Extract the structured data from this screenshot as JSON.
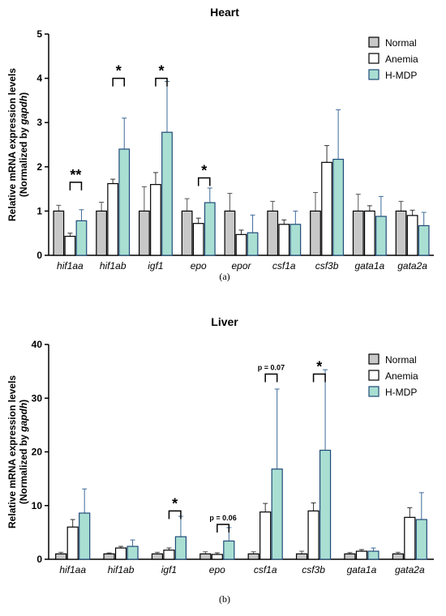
{
  "chart_data": [
    {
      "type": "bar",
      "panel": "(a)",
      "title": "Heart",
      "ylabel_line1": "Relative mRNA expression levels",
      "ylabel_line2_prefix": "(Normalized by ",
      "ylabel_line2_gene": "gapdh",
      "ylabel_line2_suffix": ")",
      "ylim": [
        0,
        5
      ],
      "yticks": [
        "0",
        "1",
        "2",
        "3",
        "4",
        "5"
      ],
      "legend_position": "top-right",
      "categories": [
        "hif1aa",
        "hif1ab",
        "igf1",
        "epo",
        "epor",
        "csf1a",
        "csf3b",
        "gata1a",
        "gata2a"
      ],
      "series": [
        {
          "name": "Normal",
          "color": "#c8c8c8",
          "edge": "#000000",
          "err_color": "#555555",
          "values": [
            1.0,
            1.0,
            1.0,
            1.0,
            1.0,
            1.0,
            1.0,
            1.0,
            1.0
          ],
          "errors": [
            0.13,
            0.2,
            0.55,
            0.28,
            0.4,
            0.22,
            0.42,
            0.38,
            0.22
          ]
        },
        {
          "name": "Anemia",
          "color": "#ffffff",
          "edge": "#000000",
          "err_color": "#333333",
          "values": [
            0.43,
            1.62,
            1.6,
            0.72,
            0.47,
            0.7,
            2.1,
            1.0,
            0.9
          ],
          "errors": [
            0.07,
            0.1,
            0.27,
            0.12,
            0.1,
            0.1,
            0.38,
            0.12,
            0.12
          ]
        },
        {
          "name": "H-MDP",
          "color": "#a9dfd2",
          "edge": "#1f4a78",
          "err_color": "#3e6a9a",
          "values": [
            0.78,
            2.4,
            2.78,
            1.19,
            0.51,
            0.7,
            2.17,
            0.88,
            0.67
          ],
          "errors": [
            0.25,
            0.7,
            1.15,
            0.33,
            0.4,
            0.3,
            1.12,
            0.45,
            0.3
          ]
        }
      ],
      "significance": [
        {
          "category": "hif1aa",
          "label": "**",
          "top": 1.65
        },
        {
          "category": "hif1ab",
          "label": "*",
          "top": 4.0
        },
        {
          "category": "igf1",
          "label": "*",
          "top": 4.0
        },
        {
          "category": "epo",
          "label": "*",
          "top": 1.75
        }
      ]
    },
    {
      "type": "bar",
      "panel": "(b)",
      "title": "Liver",
      "ylabel_line1": "Relative mRNA expression levels",
      "ylabel_line2_prefix": "(Normalized by ",
      "ylabel_line2_gene": "gapdh",
      "ylabel_line2_suffix": ")",
      "ylim": [
        0,
        40
      ],
      "yticks": [
        "0",
        "10",
        "20",
        "30",
        "40"
      ],
      "legend_position": "top-right",
      "categories": [
        "hif1aa",
        "hif1ab",
        "igf1",
        "epo",
        "csf1a",
        "csf3b",
        "gata1a",
        "gata2a"
      ],
      "series": [
        {
          "name": "Normal",
          "color": "#c8c8c8",
          "edge": "#000000",
          "err_color": "#555555",
          "values": [
            1.0,
            1.0,
            1.0,
            1.0,
            1.0,
            1.0,
            1.0,
            1.0
          ],
          "errors": [
            0.3,
            0.2,
            0.3,
            0.4,
            0.4,
            0.5,
            0.25,
            0.3
          ]
        },
        {
          "name": "Anemia",
          "color": "#ffffff",
          "edge": "#000000",
          "err_color": "#333333",
          "values": [
            6.0,
            2.1,
            1.7,
            0.9,
            8.8,
            9.0,
            1.5,
            7.8
          ],
          "errors": [
            1.4,
            0.3,
            0.4,
            0.3,
            1.6,
            1.5,
            0.3,
            1.8
          ]
        },
        {
          "name": "H-MDP",
          "color": "#a9dfd2",
          "edge": "#1f4a78",
          "err_color": "#3e6a9a",
          "values": [
            8.6,
            2.4,
            4.2,
            3.4,
            16.8,
            20.3,
            1.5,
            7.4
          ],
          "errors": [
            4.5,
            1.2,
            3.8,
            2.5,
            14.9,
            15.0,
            0.6,
            5.0
          ]
        }
      ],
      "significance": [
        {
          "category": "igf1",
          "label": "*",
          "top": 9.0
        },
        {
          "category": "epo",
          "label": "p = 0.06",
          "top": 6.5
        },
        {
          "category": "csf1a",
          "label": "p = 0.07",
          "top": 34.5
        },
        {
          "category": "csf3b",
          "label": "*",
          "top": 34.5
        }
      ]
    }
  ]
}
